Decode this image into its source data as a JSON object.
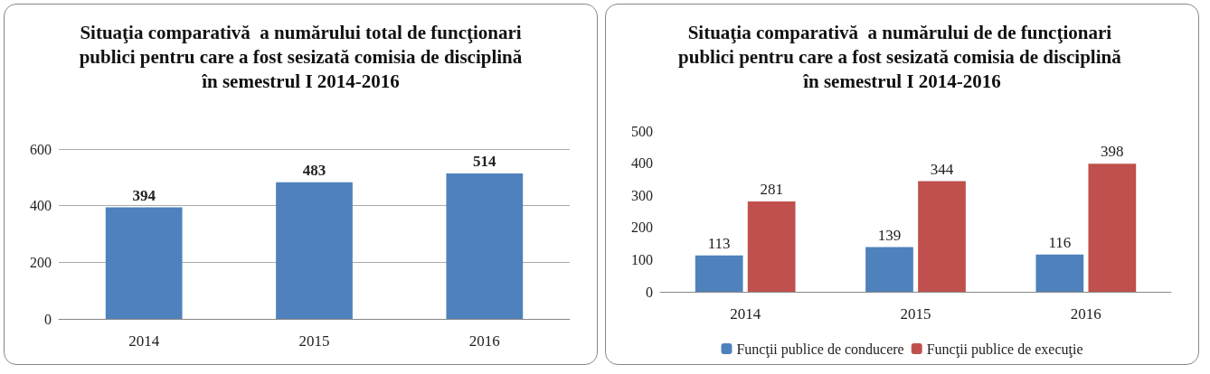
{
  "chart_data": [
    {
      "type": "bar",
      "title": "Situaţia comparativă  a numărului total de funcţionari publici pentru care a fost sesizată comisia de disciplină în semestrul I 2014-2016",
      "categories": [
        "2014",
        "2015",
        "2016"
      ],
      "values": [
        394,
        483,
        514
      ],
      "color": "#4f81bd",
      "ylim": [
        0,
        600
      ],
      "yticks": [
        0,
        200,
        400,
        600
      ],
      "grid": "y",
      "data_labels": true,
      "legend": false
    },
    {
      "type": "bar",
      "title": "Situaţia comparativă  a numărului de de funcţionari publici pentru care a fost sesizată comisia de disciplină în semestrul I 2014-2016",
      "categories": [
        "2014",
        "2015",
        "2016"
      ],
      "series": [
        {
          "name": "Funcţii publice de conducere",
          "color": "#4f81bd",
          "values": [
            113,
            139,
            116
          ]
        },
        {
          "name": "Funcţii publice de execuţie",
          "color": "#c0504d",
          "values": [
            281,
            344,
            398
          ]
        }
      ],
      "ylim": [
        0,
        500
      ],
      "yticks": [
        0,
        100,
        200,
        300,
        400,
        500
      ],
      "grid": false,
      "data_labels": true,
      "legend": "bottom"
    }
  ]
}
